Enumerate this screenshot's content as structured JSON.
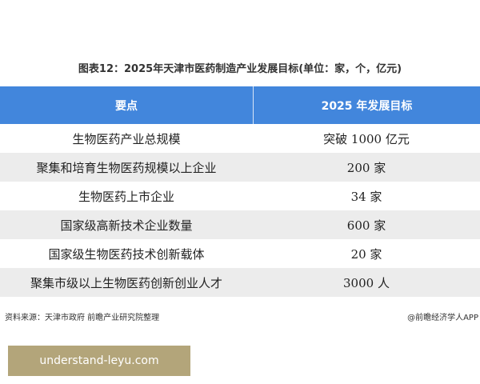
{
  "title": "图表12：2025年天津市医药制造产业发展目标(单位：家，个，亿元)",
  "table": {
    "headers": [
      "要点",
      "2025 年发展目标"
    ],
    "rows": [
      [
        "生物医药产业总规模",
        "突破 1000 亿元"
      ],
      [
        "聚集和培育生物医药规模以上企业",
        "200 家"
      ],
      [
        "生物医药上市企业",
        "34 家"
      ],
      [
        "国家级高新技术企业数量",
        "600 家"
      ],
      [
        "国家级生物医药技术创新载体",
        "20 家"
      ],
      [
        "聚集市级以上生物医药创新创业人才",
        "3000 人"
      ]
    ]
  },
  "footer": {
    "source": "资料来源：天津市政府 前瞻产业研究院整理",
    "app": "@前瞻经济学人APP"
  },
  "banner": "understand-leyu.com",
  "colors": {
    "header": "#4286dc",
    "stripe": "#ececec",
    "banner": "#b3a57a"
  }
}
